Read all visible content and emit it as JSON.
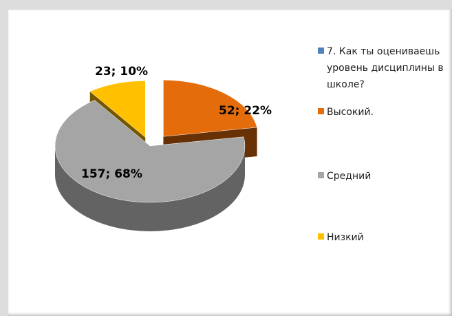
{
  "chart_data": {
    "type": "pie",
    "categories": [
      "Высокий.",
      "Средний",
      "Низкий"
    ],
    "colors": [
      "#e46c0a",
      "#a5a5a5",
      "#ffc000"
    ],
    "series": [
      {
        "name": "7. Как ты оцениваешь уровень дисциплины в школе?",
        "color": "#4f81bd",
        "values": [
          52,
          157,
          23
        ],
        "value_labels": [
          "52; 22%",
          "157; 68%",
          "23; 10%"
        ]
      }
    ]
  }
}
